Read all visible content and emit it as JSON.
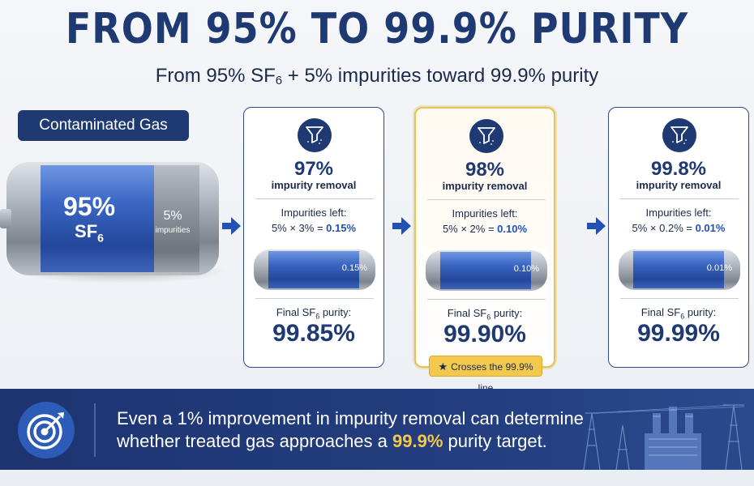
{
  "title": "FROM 95% TO 99.9% PURITY",
  "subtitle": {
    "pre": "From 95% SF",
    "sub": "6",
    "post": " + 5% impurities toward 99.9% purity"
  },
  "contaminated": {
    "label": "Contaminated Gas",
    "sf6_pct": "95%",
    "sf6_name": "SF",
    "sf6_sub": "6",
    "imp_pct": "5%",
    "imp_label": "impurities"
  },
  "cards": [
    {
      "removal_pct": "97%",
      "removal_label": "impurity removal",
      "imp_left_label": "Impurities left:",
      "calc_prefix": "5% × 3% = ",
      "calc_result": "0.15%",
      "tank_value": "0.15%",
      "final_label_pre": "Final SF",
      "final_label_sub": "6",
      "final_label_post": " purity:",
      "final_value": "99.85%"
    },
    {
      "removal_pct": "98%",
      "removal_label": "impurity removal",
      "imp_left_label": "Impurities left:",
      "calc_prefix": "5% × 2% = ",
      "calc_result": "0.10%",
      "tank_value": "0.10%",
      "final_label_pre": "Final SF",
      "final_label_sub": "6",
      "final_label_post": " purity:",
      "final_value": "99.90%",
      "badge": "Crosses the 99.9% line"
    },
    {
      "removal_pct": "99.8%",
      "removal_label": "impurity removal",
      "imp_left_label": "Impurities left:",
      "calc_prefix": "5% × 0.2% = ",
      "calc_result": "0.01%",
      "tank_value": "0.01%",
      "final_label_pre": "Final SF",
      "final_label_sub": "6",
      "final_label_post": " purity:",
      "final_value": "99.99%"
    }
  ],
  "footer": {
    "line1": "Even a 1% improvement in impurity removal can determine",
    "line2_pre": "whether treated gas approaches a ",
    "line2_hl": "99.9%",
    "line2_post": " purity target."
  },
  "colors": {
    "navy": "#1f3a73",
    "accent_blue": "#2250b5",
    "highlight_gold": "#f2c94c"
  },
  "icons": [
    "filter-icon",
    "target-icon",
    "star-icon",
    "arrow-right-icon"
  ]
}
